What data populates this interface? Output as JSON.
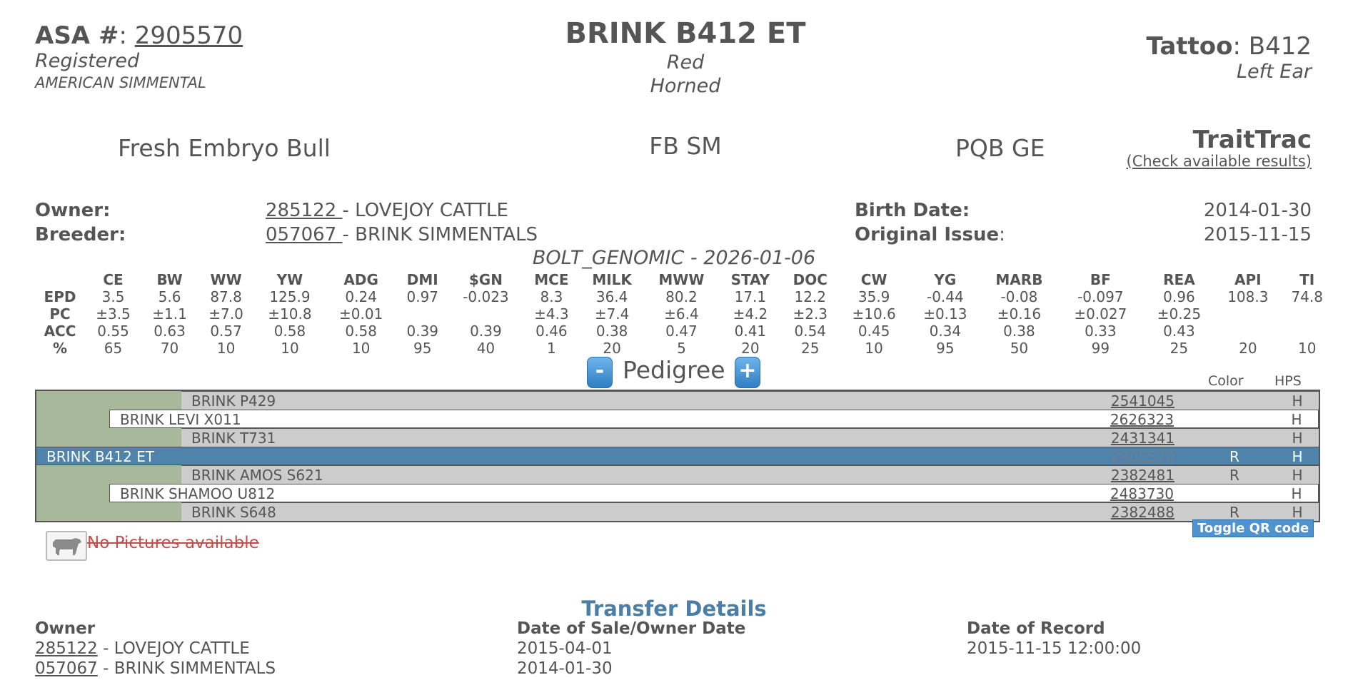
{
  "header": {
    "asa_label": "ASA #",
    "asa_number": "2905570",
    "registration_status": "Registered",
    "breed": "AMERICAN SIMMENTAL",
    "animal_name": "BRINK B412 ET",
    "color": "Red",
    "horned": "Horned",
    "tattoo_label": "Tattoo",
    "tattoo": "B412",
    "tattoo_location": "Left Ear"
  },
  "status": {
    "item1": "Fresh Embryo Bull",
    "item2": "FB SM",
    "item3": "PQB GE",
    "traittrac": "TraitTrac",
    "traittrac_link": "(Check available results)"
  },
  "ownership": {
    "owner_label": "Owner:",
    "owner_id": "285122 ",
    "owner_name": "- LOVEJOY CATTLE",
    "breeder_label": "Breeder:",
    "breeder_id": "057067 ",
    "breeder_name": "- BRINK SIMMENTALS",
    "birth_label": "Birth Date:",
    "birth_date": "2014-01-30",
    "issue_label": "Original Issue",
    "issue_date": "2015-11-15"
  },
  "epd": {
    "run": "BOLT_GENOMIC - 2026-01-06",
    "columns": [
      "CE",
      "BW",
      "WW",
      "YW",
      "ADG",
      "DMI",
      "$GN",
      "MCE",
      "MILK",
      "MWW",
      "STAY",
      "DOC",
      "CW",
      "YG",
      "MARB",
      "BF",
      "REA",
      "API",
      "TI"
    ],
    "rows": [
      {
        "label": "EPD",
        "values": [
          "3.5",
          "5.6",
          "87.8",
          "125.9",
          "0.24",
          "0.97",
          "-0.023",
          "8.3",
          "36.4",
          "80.2",
          "17.1",
          "12.2",
          "35.9",
          "-0.44",
          "-0.08",
          "-0.097",
          "0.96",
          "108.3",
          "74.8"
        ]
      },
      {
        "label": "PC",
        "values": [
          "±3.5",
          "±1.1",
          "±7.0",
          "±10.8",
          "±0.01",
          "",
          "",
          "±4.3",
          "±7.4",
          "±6.4",
          "±4.2",
          "±2.3",
          "±10.6",
          "±0.13",
          "±0.16",
          "±0.027",
          "±0.25",
          "",
          ""
        ]
      },
      {
        "label": "ACC",
        "values": [
          "0.55",
          "0.63",
          "0.57",
          "0.58",
          "0.58",
          "0.39",
          "0.39",
          "0.46",
          "0.38",
          "0.47",
          "0.41",
          "0.54",
          "0.45",
          "0.34",
          "0.38",
          "0.33",
          "0.43",
          "",
          ""
        ]
      },
      {
        "label": "%",
        "values": [
          "65",
          "70",
          "10",
          "10",
          "10",
          "95",
          "40",
          "1",
          "20",
          "5",
          "20",
          "25",
          "10",
          "95",
          "50",
          "99",
          "25",
          "20",
          "10"
        ]
      }
    ]
  },
  "pedigree": {
    "title": "Pedigree",
    "minus": "-",
    "plus": "+",
    "color_header": "Color",
    "hps_header": "HPS",
    "rows": [
      {
        "name": "BRINK P429",
        "reg": "2541045",
        "color": "",
        "hps": "H"
      },
      {
        "name": "BRINK LEVI X011",
        "reg": "2626323",
        "color": "",
        "hps": "H"
      },
      {
        "name": "BRINK T731",
        "reg": "2431341",
        "color": "",
        "hps": "H"
      },
      {
        "name": "BRINK B412 ET",
        "reg": "2905570",
        "color": "R",
        "hps": "H"
      },
      {
        "name": "BRINK AMOS S621",
        "reg": "2382481",
        "color": "R",
        "hps": "H"
      },
      {
        "name": "BRINK SHAMOO U812",
        "reg": "2483730",
        "color": "",
        "hps": "H"
      },
      {
        "name": "BRINK S648",
        "reg": "2382488",
        "color": "R",
        "hps": "H"
      }
    ],
    "qr_button": "Toggle QR code"
  },
  "pictures": {
    "icon": "cow-icon",
    "text": "No Pictures available"
  },
  "transfers": {
    "title": "Transfer Details",
    "owner_header": "Owner",
    "date_header": "Date of Sale/Owner Date",
    "record_header": "Date of Record",
    "rows": [
      {
        "id": "285122",
        "name": " - LOVEJOY CATTLE",
        "date": "2015-04-01",
        "record": "2015-11-15 12:00:00"
      },
      {
        "id": "057067",
        "name": " - BRINK SIMMENTALS",
        "date": "2014-01-30",
        "record": ""
      }
    ]
  },
  "colors": {
    "selected_row": "#4e83ac",
    "pedigree_bg": "#a8b89a",
    "accent_blue": "#4a7ea6",
    "no_pic_red": "#c0504d"
  }
}
